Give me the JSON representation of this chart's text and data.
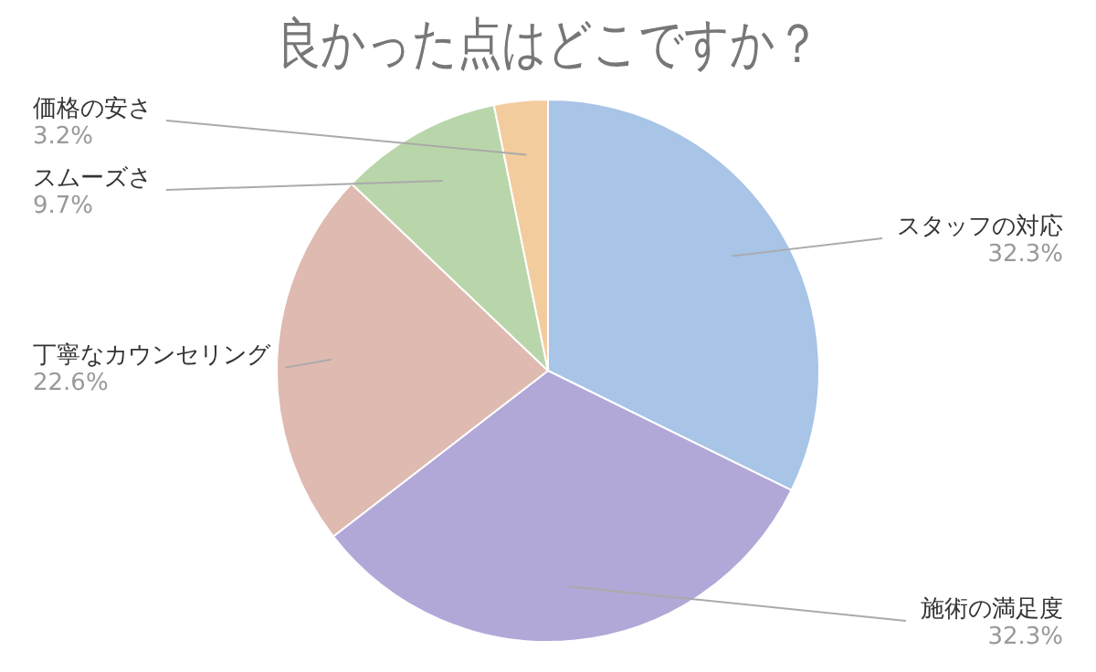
{
  "chart_data": {
    "type": "pie",
    "title": "良かった点はどこですか？",
    "categories": [
      "スタッフの対応",
      "施術の満足度",
      "丁寧なカウンセリング",
      "スムーズさ",
      "価格の安さ"
    ],
    "values": [
      32.3,
      32.3,
      22.6,
      9.7,
      3.2
    ],
    "value_labels": [
      "32.3%",
      "32.3%",
      "22.6%",
      "9.7%",
      "3.2%"
    ],
    "colors": [
      "#a8c4e6",
      "#b2a8d8",
      "#dfbab1",
      "#b9d6aa",
      "#f3cc9e"
    ],
    "legend": false
  }
}
